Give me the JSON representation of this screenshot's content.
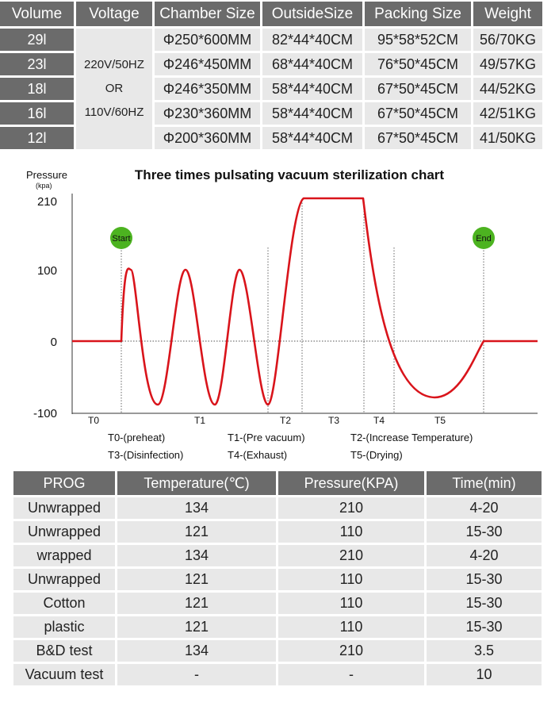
{
  "spec_table": {
    "headers": [
      "Volume",
      "Voltage",
      "Chamber Size",
      "OutsideSize",
      "Packing Size",
      "Weight"
    ],
    "voltage": {
      "line1": "220V/50HZ",
      "line2": "OR",
      "line3": "110V/60HZ"
    },
    "rows": [
      {
        "volume": "29l",
        "chamber": "Φ250*600MM",
        "outside": "82*44*40CM",
        "packing": "95*58*52CM",
        "weight": "56/70KG"
      },
      {
        "volume": "23l",
        "chamber": "Φ246*450MM",
        "outside": "68*44*40CM",
        "packing": "76*50*45CM",
        "weight": "49/57KG"
      },
      {
        "volume": "18l",
        "chamber": "Φ246*350MM",
        "outside": "58*44*40CM",
        "packing": "67*50*45CM",
        "weight": "44/52KG"
      },
      {
        "volume": "16l",
        "chamber": "Φ230*360MM",
        "outside": "58*44*40CM",
        "packing": "67*50*45CM",
        "weight": "42/51KG"
      },
      {
        "volume": "12l",
        "chamber": "Φ200*360MM",
        "outside": "58*44*40CM",
        "packing": "67*50*45CM",
        "weight": "41/50KG"
      }
    ]
  },
  "chart_data": {
    "type": "line",
    "title": "Three times pulsating vacuum sterilization chart",
    "ylabel": "Pressure",
    "ylabel_unit": "(kpa)",
    "yticks": [
      "210",
      "100",
      "0",
      "-100"
    ],
    "ylim": [
      -100,
      210
    ],
    "start_label": "Start",
    "end_label": "End",
    "phases": [
      "T0",
      "T1",
      "T2",
      "T3",
      "T4",
      "T5"
    ],
    "legend": [
      [
        "T0-(preheat)",
        "T1-(Pre vacuum)",
        "T2-(Increase Temperature)"
      ],
      [
        "T3-(Disinfection)",
        "T4-(Exhaust)",
        "T5-(Drying)"
      ]
    ],
    "line_color": "#d9141b",
    "marker_color": "#4cb320",
    "series": [
      {
        "values": [
          {
            "phase": "T0",
            "pressure": 0
          },
          {
            "phase": "T1",
            "pressure": 100
          },
          {
            "phase": "T1",
            "pressure": -88
          },
          {
            "phase": "T1",
            "pressure": 100
          },
          {
            "phase": "T1",
            "pressure": -88
          },
          {
            "phase": "T1",
            "pressure": 100
          },
          {
            "phase": "T1",
            "pressure": -88
          },
          {
            "phase": "T2",
            "pressure": 210
          },
          {
            "phase": "T3",
            "pressure": 210
          },
          {
            "phase": "T5",
            "pressure": -78
          },
          {
            "phase": "End",
            "pressure": 0
          }
        ]
      }
    ]
  },
  "program_table": {
    "headers": [
      "PROG",
      "Temperature(℃)",
      "Pressure(KPA)",
      "Time(min)"
    ],
    "rows": [
      [
        "Unwrapped",
        "134",
        "210",
        "4-20"
      ],
      [
        "Unwrapped",
        "121",
        "110",
        "15-30"
      ],
      [
        "wrapped",
        "134",
        "210",
        "4-20"
      ],
      [
        "Unwrapped",
        "121",
        "110",
        "15-30"
      ],
      [
        "Cotton",
        "121",
        "110",
        "15-30"
      ],
      [
        "plastic",
        "121",
        "110",
        "15-30"
      ],
      [
        "B&D test",
        "134",
        "210",
        "3.5"
      ],
      [
        "Vacuum test",
        "-",
        "-",
        "10"
      ]
    ]
  }
}
